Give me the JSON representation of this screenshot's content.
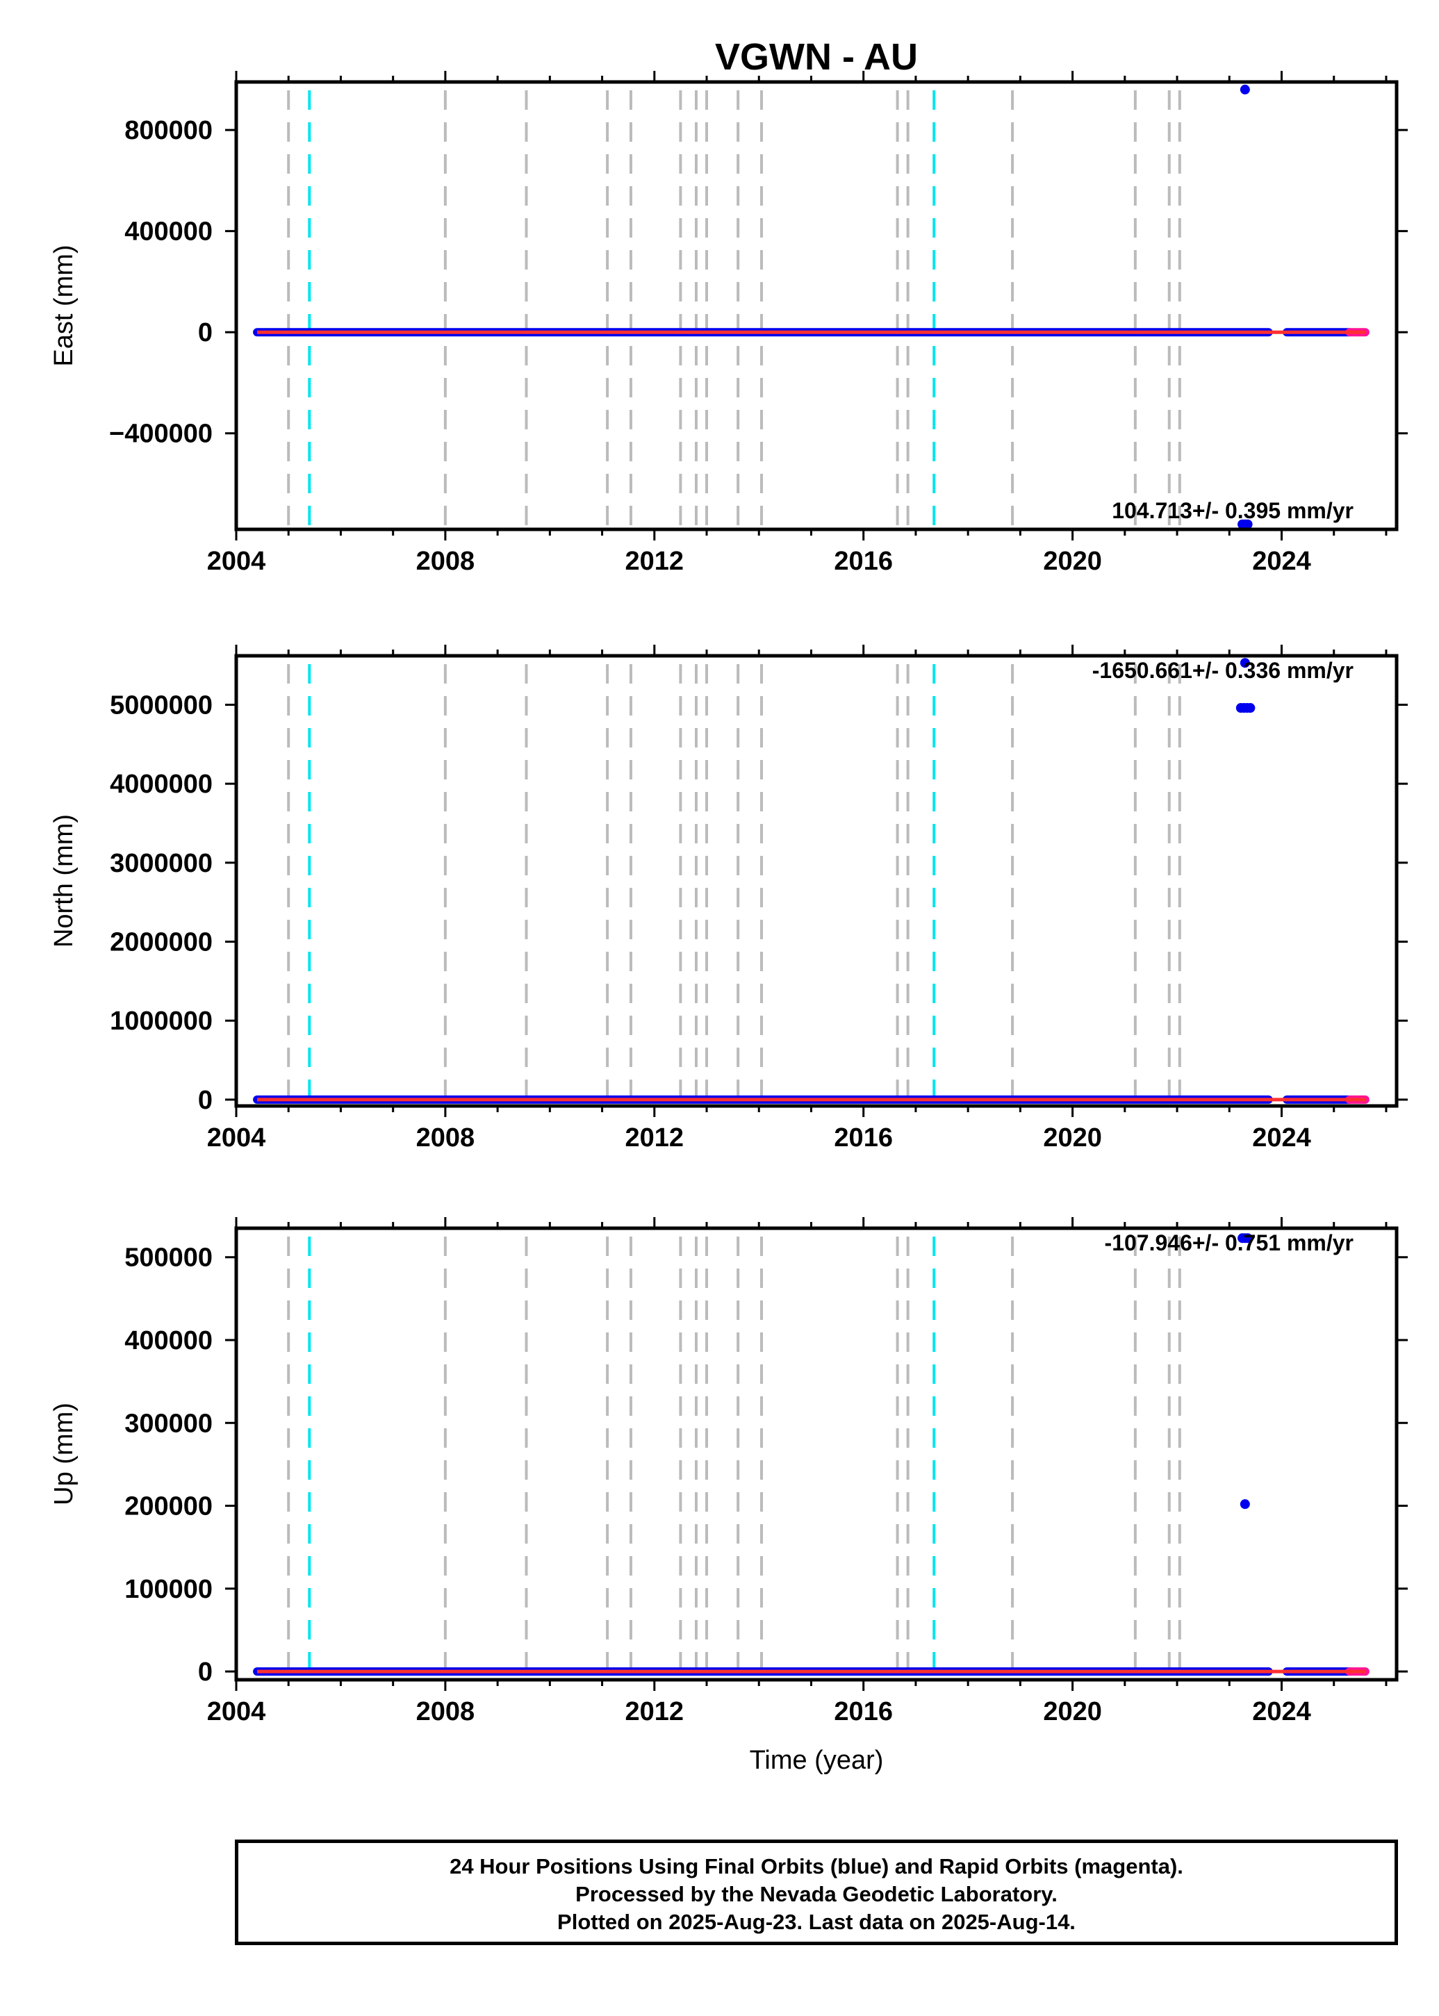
{
  "title": "VGWN - AU",
  "colors": {
    "final": "#0000ee",
    "rapid": "#ff1493",
    "model": "#ff3030",
    "break_gray": "#bbbbbb",
    "break_cyan": "#00e5ee",
    "frame": "#000000"
  },
  "footer": {
    "line1": "24 Hour Positions Using Final Orbits (blue) and Rapid Orbits (magenta).",
    "line2": "Processed by the Nevada Geodetic Laboratory.",
    "line3": "Plotted on 2025-Aug-23. Last data on 2025-Aug-14."
  },
  "chart_data": [
    {
      "type": "scatter",
      "ylabel": "East (mm)",
      "xlabel": "",
      "xlim": [
        2004.0,
        2026.2
      ],
      "ylim": [
        -780000,
        990000
      ],
      "xticks": [
        "2004",
        "2008",
        "2012",
        "2016",
        "2020",
        "2024"
      ],
      "yticks": [
        {
          "value": 800000,
          "label": "800000"
        },
        {
          "value": 400000,
          "label": "400000"
        },
        {
          "value": 0,
          "label": "0"
        },
        {
          "value": -400000,
          "label": "−400000"
        }
      ],
      "rate_text": "104.713+/- 0.395 mm/yr",
      "rate_position": "bottom-right",
      "baseline": {
        "x_start": 2004.4,
        "x_end": 2025.6,
        "y": 0
      },
      "outliers": [
        {
          "x": 2023.3,
          "y": 960000
        },
        {
          "x": 2023.25,
          "y": -760000
        },
        {
          "x": 2023.3,
          "y": -760000
        },
        {
          "x": 2023.35,
          "y": -760000
        }
      ]
    },
    {
      "type": "scatter",
      "ylabel": "North (mm)",
      "xlabel": "",
      "xlim": [
        2004.0,
        2026.2
      ],
      "ylim": [
        -80000,
        5620000
      ],
      "xticks": [
        "2004",
        "2008",
        "2012",
        "2016",
        "2020",
        "2024"
      ],
      "yticks": [
        {
          "value": 5000000,
          "label": "5000000"
        },
        {
          "value": 4000000,
          "label": "4000000"
        },
        {
          "value": 3000000,
          "label": "3000000"
        },
        {
          "value": 2000000,
          "label": "2000000"
        },
        {
          "value": 1000000,
          "label": "1000000"
        },
        {
          "value": 0,
          "label": "0"
        }
      ],
      "rate_text": "-1650.661+/- 0.336 mm/yr",
      "rate_position": "top-right",
      "baseline": {
        "x_start": 2004.4,
        "x_end": 2025.6,
        "y": 0
      },
      "outliers": [
        {
          "x": 2023.3,
          "y": 5530000
        },
        {
          "x": 2023.22,
          "y": 4960000
        },
        {
          "x": 2023.28,
          "y": 4960000
        },
        {
          "x": 2023.34,
          "y": 4960000
        },
        {
          "x": 2023.4,
          "y": 4960000
        }
      ]
    },
    {
      "type": "scatter",
      "ylabel": "Up (mm)",
      "xlabel": "Time (year)",
      "xlim": [
        2004.0,
        2026.2
      ],
      "ylim": [
        -10000,
        535000
      ],
      "xticks": [
        "2004",
        "2008",
        "2012",
        "2016",
        "2020",
        "2024"
      ],
      "yticks": [
        {
          "value": 500000,
          "label": "500000"
        },
        {
          "value": 400000,
          "label": "400000"
        },
        {
          "value": 300000,
          "label": "300000"
        },
        {
          "value": 200000,
          "label": "200000"
        },
        {
          "value": 100000,
          "label": "100000"
        },
        {
          "value": 0,
          "label": "0"
        }
      ],
      "rate_text": "-107.946+/- 0.751 mm/yr",
      "rate_position": "top-right",
      "baseline": {
        "x_start": 2004.4,
        "x_end": 2025.6,
        "y": 0
      },
      "outliers": [
        {
          "x": 2023.25,
          "y": 523000
        },
        {
          "x": 2023.3,
          "y": 523000
        },
        {
          "x": 2023.35,
          "y": 523000
        },
        {
          "x": 2023.3,
          "y": 202000
        }
      ]
    }
  ],
  "breaks": {
    "gray": [
      2005.0,
      2008.0,
      2009.55,
      2011.1,
      2011.55,
      2012.5,
      2012.8,
      2013.0,
      2013.6,
      2014.05,
      2016.65,
      2016.85,
      2018.85,
      2021.2,
      2021.85,
      2022.05
    ],
    "cyan": [
      2005.4,
      2017.35
    ]
  }
}
